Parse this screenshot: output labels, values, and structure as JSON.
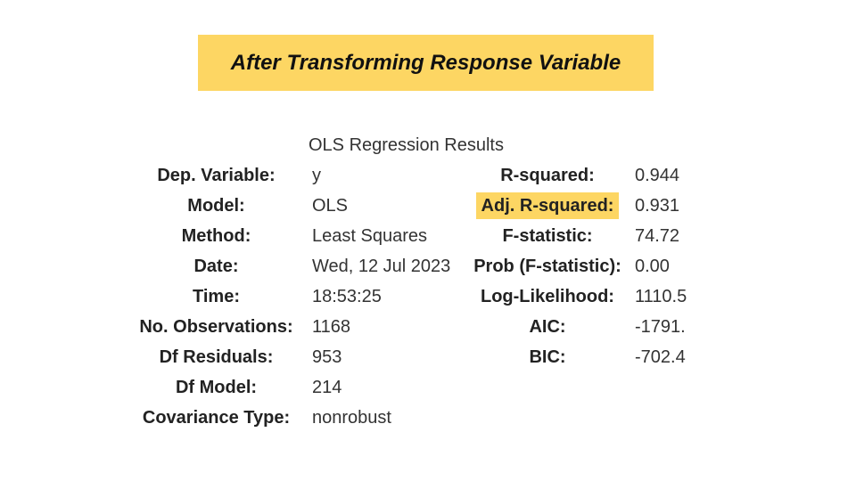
{
  "title": "After Transforming Response Variable",
  "highlight_color": "#fdd663",
  "table": {
    "caption": "OLS Regression Results",
    "rows": [
      {
        "left_label": "Dep. Variable:",
        "left_value": "y",
        "right_label": "R-squared:",
        "right_value": "0.944"
      },
      {
        "left_label": "Model:",
        "left_value": "OLS",
        "right_label": "Adj. R-squared:",
        "right_value": "0.931",
        "right_highlighted": true
      },
      {
        "left_label": "Method:",
        "left_value": "Least Squares",
        "right_label": "F-statistic:",
        "right_value": "74.72"
      },
      {
        "left_label": "Date:",
        "left_value": "Wed, 12 Jul 2023",
        "right_label": "Prob (F-statistic):",
        "right_value": "0.00"
      },
      {
        "left_label": "Time:",
        "left_value": "18:53:25",
        "right_label": "Log-Likelihood:",
        "right_value": "1110.5"
      },
      {
        "left_label": "No. Observations:",
        "left_value": "1168",
        "right_label": "AIC:",
        "right_value": "-1791."
      },
      {
        "left_label": "Df Residuals:",
        "left_value": "953",
        "right_label": "BIC:",
        "right_value": "-702.4"
      },
      {
        "left_label": "Df Model:",
        "left_value": "214",
        "right_label": "",
        "right_value": ""
      },
      {
        "left_label": "Covariance Type:",
        "left_value": "nonrobust",
        "right_label": "",
        "right_value": ""
      }
    ]
  }
}
